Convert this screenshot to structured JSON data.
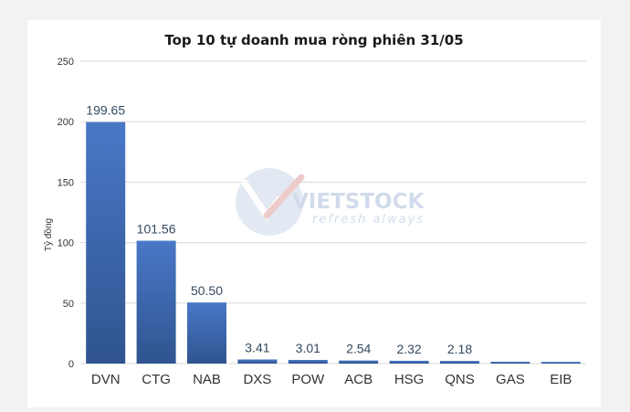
{
  "chart_data": {
    "type": "bar",
    "title": "Top 10 tự doanh mua ròng phiên 31/05",
    "xlabel": "",
    "ylabel": "Tỷ đồng",
    "categories": [
      "DVN",
      "CTG",
      "NAB",
      "DXS",
      "POW",
      "ACB",
      "HSG",
      "QNS",
      "GAS",
      "EIB"
    ],
    "values": [
      199.65,
      101.56,
      50.5,
      3.41,
      3.01,
      2.54,
      2.32,
      2.18,
      1.5,
      1.4
    ],
    "data_labels": [
      "199.65",
      "101.56",
      "50.50",
      "3.41",
      "3.01",
      "2.54",
      "2.32",
      "2.18",
      "",
      ""
    ],
    "ylim": [
      0,
      250
    ],
    "yticks": [
      0,
      50,
      100,
      150,
      200,
      250
    ],
    "grid": true,
    "legend": "none",
    "colors": {
      "bar_top": "#4a78c7",
      "bar_bottom": "#2f548f",
      "grid": "#d9d9d9"
    }
  },
  "watermark": {
    "brand": "VIETSTOCK",
    "tagline": "refresh always"
  }
}
